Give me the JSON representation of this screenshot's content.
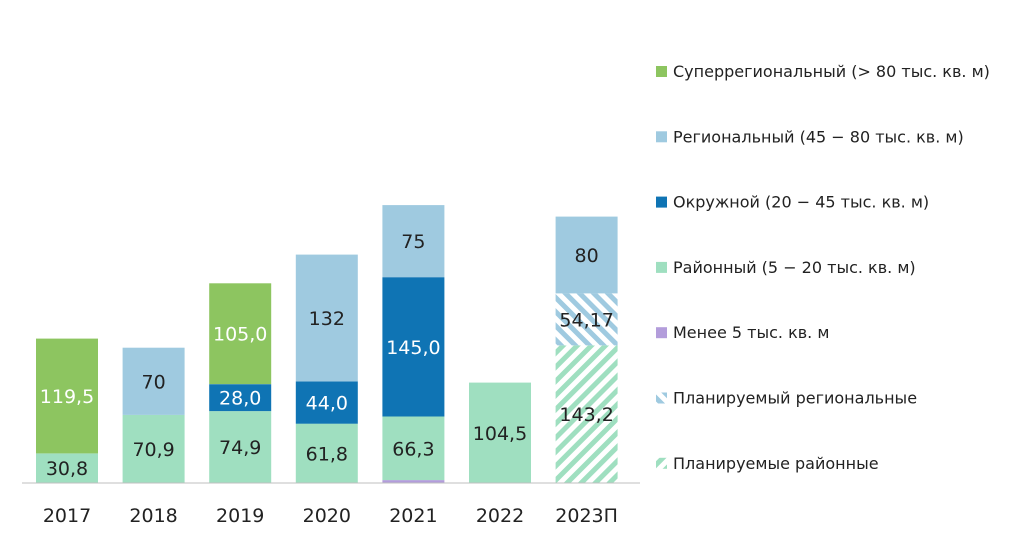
{
  "chart_data": {
    "type": "bar",
    "stacked": true,
    "categories": [
      "2017",
      "2018",
      "2019",
      "2020",
      "2021",
      "2022",
      "2023П"
    ],
    "ylim": [
      0,
      430
    ],
    "grid": false,
    "legend_position": "right",
    "series": [
      {
        "key": "small",
        "name": "Менее 5 тыс. кв. м",
        "color": "#b39ddb",
        "pattern": "solid",
        "values": [
          null,
          null,
          null,
          null,
          3.0,
          null,
          null
        ],
        "labels": [
          null,
          null,
          null,
          null,
          null,
          null,
          null
        ]
      },
      {
        "key": "district",
        "name": "Районный (5 − 20 тыс. кв. м)",
        "color": "#9fdfc0",
        "pattern": "solid",
        "values": [
          30.8,
          70.9,
          74.9,
          61.8,
          66.3,
          104.5,
          null
        ],
        "labels": [
          "30,8",
          "70,9",
          "74,9",
          "61,8",
          "66,3",
          "104,5",
          null
        ]
      },
      {
        "key": "planned_district",
        "name": "Планируемые районные",
        "color": "#9fdfc0",
        "pattern": "hatch",
        "values": [
          null,
          null,
          null,
          null,
          null,
          null,
          143.2
        ],
        "labels": [
          null,
          null,
          null,
          null,
          null,
          null,
          "143,2"
        ]
      },
      {
        "key": "okrug",
        "name": "Окружной (20 − 45 тыс. кв. м)",
        "color": "#0f74b4",
        "pattern": "solid",
        "values": [
          null,
          null,
          28.0,
          44.0,
          145.0,
          null,
          null
        ],
        "labels": [
          null,
          null,
          "28,0",
          "44,0",
          "145,0",
          null,
          null
        ]
      },
      {
        "key": "planned_regional",
        "name": "Планируемый региональные",
        "color": "#9fcae0",
        "pattern": "hatch",
        "values": [
          null,
          null,
          null,
          null,
          null,
          null,
          54.17
        ],
        "labels": [
          null,
          null,
          null,
          null,
          null,
          null,
          "54,17"
        ]
      },
      {
        "key": "regional",
        "name": "Региональный (45 − 80 тыс. кв. м)",
        "color": "#9fcae0",
        "pattern": "solid",
        "values": [
          null,
          70,
          null,
          132,
          75,
          null,
          80
        ],
        "labels": [
          null,
          "70",
          null,
          "132",
          "75",
          null,
          "80"
        ]
      },
      {
        "key": "superregional",
        "name": "Суперрегиональный (> 80 тыс. кв. м)",
        "color": "#8dc560",
        "pattern": "solid",
        "values": [
          119.5,
          null,
          105.0,
          null,
          null,
          null,
          null
        ],
        "labels": [
          "119,5",
          null,
          "105,0",
          null,
          null,
          null,
          null
        ]
      }
    ],
    "label_colors": {
      "light": "#222222",
      "dark": "#ffffff"
    },
    "legend_order": [
      "superregional",
      "regional",
      "okrug",
      "district",
      "small",
      "planned_regional",
      "planned_district"
    ]
  }
}
